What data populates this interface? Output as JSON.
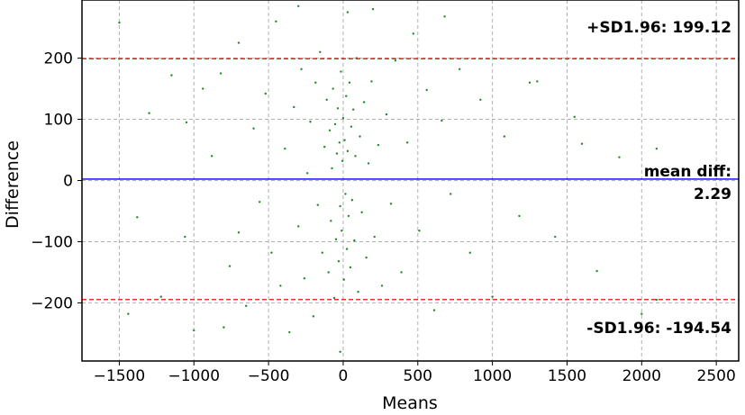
{
  "chart_data": {
    "type": "scatter",
    "title": "",
    "xlabel": "Means",
    "ylabel": "Difference",
    "xlim": [
      -1750,
      2650
    ],
    "ylim": [
      -295,
      295
    ],
    "xticks": [
      -1500,
      -1000,
      -500,
      0,
      500,
      1000,
      1500,
      2000,
      2500
    ],
    "xtick_labels": [
      "−1500",
      "−1000",
      "−500",
      "0",
      "500",
      "1000",
      "1500",
      "2000",
      "2500"
    ],
    "yticks": [
      -200,
      -100,
      0,
      100,
      200
    ],
    "ytick_labels": [
      "−200",
      "−100",
      "0",
      "100",
      "200"
    ],
    "grid": true,
    "point_color": "#228b22",
    "series": [
      {
        "name": "",
        "description_points": "dense cluster centred near x=0 (spread roughly -200..200), y spread roughly -250..250; sparse scatter out to x -1500..2100",
        "points": [
          [
            -1500,
            258
          ],
          [
            -1440,
            -218
          ],
          [
            -1380,
            -60
          ],
          [
            -1300,
            110
          ],
          [
            -1220,
            -190
          ],
          [
            -1150,
            172
          ],
          [
            -1060,
            -92
          ],
          [
            -1000,
            -245
          ],
          [
            -940,
            150
          ],
          [
            -880,
            40
          ],
          [
            -820,
            175
          ],
          [
            -760,
            -140
          ],
          [
            -700,
            225
          ],
          [
            -650,
            -205
          ],
          [
            -600,
            85
          ],
          [
            -560,
            -35
          ],
          [
            -520,
            142
          ],
          [
            -480,
            -118
          ],
          [
            -450,
            260
          ],
          [
            -420,
            -172
          ],
          [
            -390,
            52
          ],
          [
            -360,
            -248
          ],
          [
            -330,
            120
          ],
          [
            -300,
            -75
          ],
          [
            -280,
            182
          ],
          [
            -260,
            -160
          ],
          [
            -240,
            12
          ],
          [
            -220,
            96
          ],
          [
            -200,
            -222
          ],
          [
            -185,
            160
          ],
          [
            -170,
            -40
          ],
          [
            -155,
            210
          ],
          [
            -140,
            -118
          ],
          [
            -125,
            55
          ],
          [
            -110,
            132
          ],
          [
            -98,
            -150
          ],
          [
            -90,
            82
          ],
          [
            -82,
            -66
          ],
          [
            -75,
            20
          ],
          [
            -68,
            150
          ],
          [
            -60,
            -192
          ],
          [
            -54,
            92
          ],
          [
            -48,
            -96
          ],
          [
            -42,
            44
          ],
          [
            -36,
            118
          ],
          [
            -30,
            -132
          ],
          [
            -25,
            62
          ],
          [
            -20,
            -42
          ],
          [
            -15,
            178
          ],
          [
            -10,
            -82
          ],
          [
            -5,
            32
          ],
          [
            0,
            102
          ],
          [
            5,
            -162
          ],
          [
            10,
            66
          ],
          [
            15,
            -22
          ],
          [
            20,
            138
          ],
          [
            25,
            -112
          ],
          [
            30,
            48
          ],
          [
            36,
            -58
          ],
          [
            42,
            160
          ],
          [
            48,
            -142
          ],
          [
            54,
            88
          ],
          [
            60,
            -32
          ],
          [
            68,
            116
          ],
          [
            75,
            -98
          ],
          [
            82,
            40
          ],
          [
            90,
            200
          ],
          [
            100,
            -182
          ],
          [
            112,
            72
          ],
          [
            125,
            -52
          ],
          [
            140,
            128
          ],
          [
            155,
            -126
          ],
          [
            170,
            28
          ],
          [
            190,
            162
          ],
          [
            210,
            -92
          ],
          [
            235,
            58
          ],
          [
            260,
            -172
          ],
          [
            290,
            108
          ],
          [
            320,
            -38
          ],
          [
            350,
            196
          ],
          [
            390,
            -150
          ],
          [
            430,
            62
          ],
          [
            470,
            240
          ],
          [
            510,
            -82
          ],
          [
            560,
            148
          ],
          [
            610,
            -212
          ],
          [
            660,
            98
          ],
          [
            720,
            -22
          ],
          [
            780,
            182
          ],
          [
            850,
            -118
          ],
          [
            920,
            132
          ],
          [
            1000,
            -190
          ],
          [
            1080,
            72
          ],
          [
            1180,
            -58
          ],
          [
            1300,
            162
          ],
          [
            1420,
            -92
          ],
          [
            1550,
            104
          ],
          [
            1700,
            -148
          ],
          [
            1850,
            38
          ],
          [
            2000,
            -218
          ],
          [
            2100,
            52
          ],
          [
            2100,
            -195
          ],
          [
            -1050,
            95
          ],
          [
            -700,
            -85
          ],
          [
            -300,
            285
          ],
          [
            200,
            280
          ],
          [
            680,
            268
          ],
          [
            -20,
            -280
          ],
          [
            30,
            275
          ],
          [
            -800,
            -240
          ],
          [
            1250,
            160
          ],
          [
            1600,
            60
          ]
        ]
      }
    ],
    "reference_lines": [
      {
        "kind": "upper",
        "value": 199.12,
        "label": "+SD1.96: 199.12",
        "color": "#ff0000",
        "style": "dashed"
      },
      {
        "kind": "mean",
        "value": 2.29,
        "label_line1": "mean diff:",
        "label_line2": "2.29",
        "color": "#0000ff",
        "style": "solid"
      },
      {
        "kind": "lower",
        "value": -194.54,
        "label": "-SD1.96: -194.54",
        "color": "#ff0000",
        "style": "dashed"
      }
    ]
  }
}
